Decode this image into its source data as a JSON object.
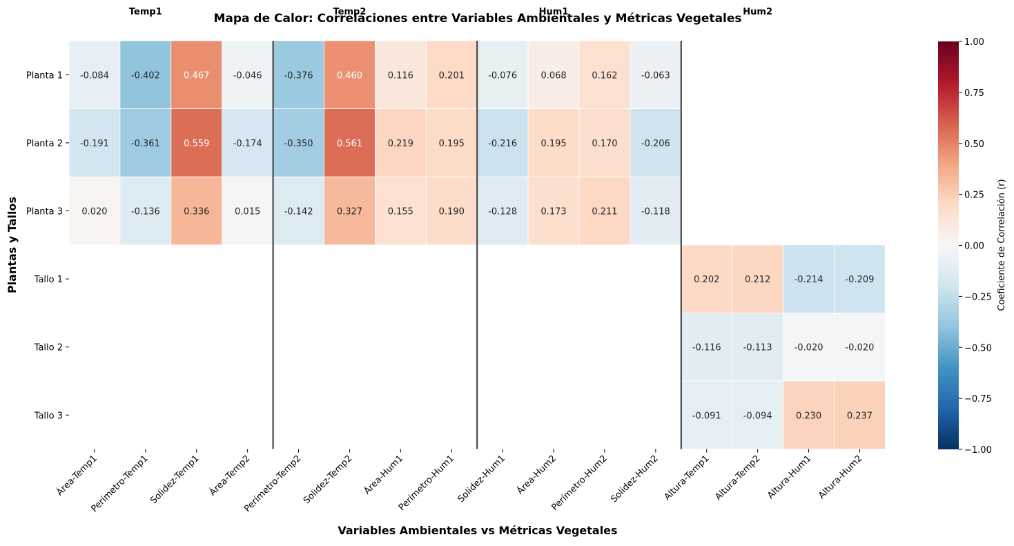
{
  "chart_data": {
    "type": "heatmap",
    "title": "Mapa de Calor: Correlaciones entre Variables Ambientales y Métricas Vegetales",
    "xlabel": "Variables Ambientales vs Métricas Vegetales",
    "ylabel": "Plantas y Tallos",
    "x_categories": [
      "Área-Temp1",
      "Perímetro-Temp1",
      "Solidez-Temp1",
      "Área-Temp2",
      "Perímetro-Temp2",
      "Solidez-Temp2",
      "Área-Hum1",
      "Perímetro-Hum1",
      "Solidez-Hum1",
      "Área-Hum2",
      "Perímetro-Hum2",
      "Solidez-Hum2",
      "Altura-Temp1",
      "Altura-Temp2",
      "Altura-Hum1",
      "Altura-Hum2"
    ],
    "y_categories": [
      "Planta 1",
      "Planta 2",
      "Planta 3",
      "Tallo 1",
      "Tallo 2",
      "Tallo 3"
    ],
    "values": [
      [
        -0.084,
        -0.402,
        0.467,
        -0.046,
        -0.376,
        0.46,
        0.116,
        0.201,
        -0.076,
        0.068,
        0.162,
        -0.063,
        null,
        null,
        null,
        null
      ],
      [
        -0.191,
        -0.361,
        0.559,
        -0.174,
        -0.35,
        0.561,
        0.219,
        0.195,
        -0.216,
        0.195,
        0.17,
        -0.206,
        null,
        null,
        null,
        null
      ],
      [
        0.02,
        -0.136,
        0.336,
        0.015,
        -0.142,
        0.327,
        0.155,
        0.19,
        -0.128,
        0.173,
        0.211,
        -0.118,
        null,
        null,
        null,
        null
      ],
      [
        null,
        null,
        null,
        null,
        null,
        null,
        null,
        null,
        null,
        null,
        null,
        null,
        0.202,
        0.212,
        -0.214,
        -0.209
      ],
      [
        null,
        null,
        null,
        null,
        null,
        null,
        null,
        null,
        null,
        null,
        null,
        null,
        -0.116,
        -0.113,
        -0.02,
        -0.02
      ],
      [
        null,
        null,
        null,
        null,
        null,
        null,
        null,
        null,
        null,
        null,
        null,
        null,
        -0.091,
        -0.094,
        0.23,
        0.237
      ]
    ],
    "group_labels": [
      "Temp1",
      "Temp2",
      "Hum1",
      "Hum2"
    ],
    "group_separators_after_column": [
      4,
      8,
      12
    ],
    "colormap": "RdBu_r",
    "vmin": -1.0,
    "vmax": 1.0,
    "colorbar": {
      "label": "Coeficiente de Correlación (r)",
      "ticks": [
        1.0,
        0.75,
        0.5,
        0.25,
        0.0,
        -0.25,
        -0.5,
        -0.75,
        -1.0
      ],
      "tick_labels": [
        "1.00",
        "0.75",
        "0.50",
        "0.25",
        "0.00",
        "−0.25",
        "−0.50",
        "−0.75",
        "−1.00"
      ]
    },
    "value_format": "3 decimals",
    "colors": {
      "separator": "#4a4a4a",
      "cell_border": "#ffffff",
      "text_dark": "#262626",
      "text_light": "#ffffff"
    }
  }
}
